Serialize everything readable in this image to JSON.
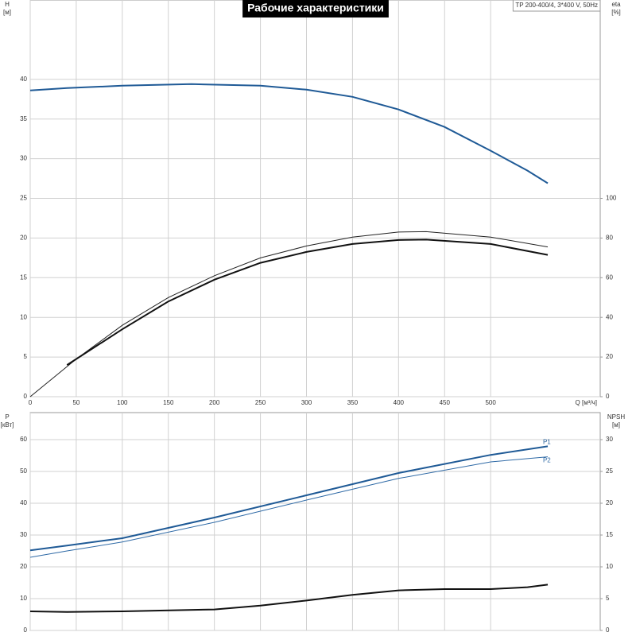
{
  "chart_data": [
    {
      "type": "line",
      "title": "Рабочие характеристики",
      "annotation": "TP 200-400/4, 3*400 V, 50Hz",
      "xlabel": "Q [м³/ч]",
      "ylabel": "H",
      "yunit": "[м]",
      "y2label": "eta",
      "y2unit": "[%]",
      "xlim": [
        0,
        619
      ],
      "xticks": [
        0,
        50,
        100,
        150,
        200,
        250,
        300,
        350,
        400,
        450,
        500
      ],
      "ylim": [
        0,
        50
      ],
      "yticks": [
        0,
        5,
        10,
        15,
        20,
        25,
        30,
        35,
        40
      ],
      "y2lim": [
        0,
        200
      ],
      "y2ticks": [
        0,
        20,
        40,
        60,
        80,
        100
      ],
      "grid": true,
      "series": [
        {
          "color": "#1f5a96",
          "width": 2,
          "x": [
            0,
            40,
            100,
            175,
            250,
            300,
            350,
            400,
            450,
            500,
            540,
            562
          ],
          "values": [
            38.6,
            38.9,
            39.2,
            39.4,
            39.2,
            38.7,
            37.8,
            36.2,
            34,
            31,
            28.5,
            26.9
          ]
        },
        {
          "color": "#222222",
          "width": 1,
          "axis": "y2",
          "x": [
            0,
            50,
            100,
            150,
            200,
            250,
            300,
            350,
            400,
            430,
            500,
            562
          ],
          "values": [
            0,
            19,
            36,
            50,
            61,
            70,
            76,
            80.5,
            83,
            83.2,
            80.5,
            75.5
          ]
        },
        {
          "color": "#111111",
          "width": 2,
          "axis": "y2",
          "x": [
            40,
            100,
            150,
            200,
            250,
            300,
            350,
            400,
            430,
            500,
            562
          ],
          "values": [
            16,
            34,
            48,
            59,
            67.5,
            73,
            77,
            79,
            79.2,
            77,
            71.5
          ]
        }
      ]
    },
    {
      "type": "line",
      "ylabel": "P",
      "yunit": "[кВт]",
      "y2label": "NPSH",
      "y2unit": "[м]",
      "xlim": [
        0,
        619
      ],
      "ylim": [
        0,
        68.5
      ],
      "yticks": [
        0,
        10,
        20,
        30,
        40,
        50,
        60
      ],
      "y2lim": [
        0,
        34.25
      ],
      "y2ticks": [
        0,
        5,
        10,
        15,
        20,
        25,
        30
      ],
      "grid": true,
      "series": [
        {
          "name": "P1",
          "color": "#1f5a96",
          "width": 2,
          "x": [
            0,
            40,
            100,
            200,
            300,
            400,
            500,
            562
          ],
          "values": [
            25.2,
            26.7,
            29,
            35.5,
            42.5,
            49.5,
            55.2,
            57.9
          ]
        },
        {
          "name": "P2",
          "color": "#2f6aa6",
          "width": 1,
          "x": [
            0,
            40,
            100,
            200,
            300,
            400,
            500,
            562
          ],
          "values": [
            23,
            25,
            27.8,
            34,
            41,
            47.8,
            53,
            54.6
          ]
        },
        {
          "color": "#111111",
          "width": 2,
          "axis": "y2",
          "x": [
            0,
            40,
            100,
            200,
            250,
            300,
            350,
            400,
            450,
            500,
            540,
            562
          ],
          "values": [
            3,
            2.9,
            3,
            3.3,
            3.9,
            4.7,
            5.6,
            6.3,
            6.5,
            6.5,
            6.8,
            7.2
          ]
        }
      ]
    }
  ]
}
